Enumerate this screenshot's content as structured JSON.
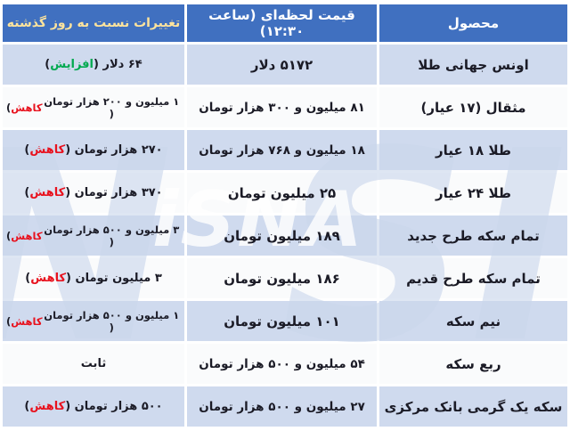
{
  "table": {
    "headers": [
      {
        "key": "product",
        "label": "محصول"
      },
      {
        "key": "price",
        "label": "قیمت لحظه‌ای (ساعت ۱۲:۳۰)"
      },
      {
        "key": "change",
        "label": "تغییرات نسبت به روز گذشته"
      }
    ],
    "rows": [
      {
        "product": "اونس جهانی طلا",
        "price": "۵۱۷۲ دلار",
        "change_text": "۶۴ دلار",
        "change_word": "افزایش",
        "change_dir": "increase"
      },
      {
        "product": "مثقال (۱۷ عیار)",
        "price": "۸۱ میلیون و ۳۰۰ هزار تومان",
        "change_text": "۱ میلیون و ۲۰۰ هزار تومان",
        "change_word": "کاهش",
        "change_dir": "decrease"
      },
      {
        "product": "طلا ۱۸ عیار",
        "price": "۱۸ میلیون و ۷۶۸ هزار تومان",
        "change_text": "۲۷۰ هزار تومان",
        "change_word": "کاهش",
        "change_dir": "decrease"
      },
      {
        "product": "طلا ۲۴ عیار",
        "price": "۲۵ میلیون تومان",
        "change_text": "۳۷۰ هزار تومان",
        "change_word": "کاهش",
        "change_dir": "decrease"
      },
      {
        "product": "تمام سکه طرح جدید",
        "price": "۱۸۹ میلیون تومان",
        "change_text": "۳ میلیون و ۵۰۰ هزار تومان",
        "change_word": "کاهش",
        "change_dir": "decrease"
      },
      {
        "product": "تمام سکه طرح قدیم",
        "price": "۱۸۶ میلیون تومان",
        "change_text": "۳ میلیون تومان",
        "change_word": "کاهش",
        "change_dir": "decrease"
      },
      {
        "product": "نیم سکه",
        "price": "۱۰۱ میلیون تومان",
        "change_text": "۱ میلیون و ۵۰۰ هزار تومان",
        "change_word": "کاهش",
        "change_dir": "decrease"
      },
      {
        "product": "ربع سکه",
        "price": "۵۴ میلیون و ۵۰۰ هزار تومان",
        "change_text": "ثابت",
        "change_word": "",
        "change_dir": "stable"
      },
      {
        "product": "سکه یک گرمی بانک مرکزی",
        "price": "۲۷ میلیون و ۵۰۰ هزار تومان",
        "change_text": "۵۰۰ هزار تومان",
        "change_word": "کاهش",
        "change_dir": "decrease"
      }
    ]
  },
  "watermark": {
    "big_letters": [
      "I",
      "S",
      "N",
      "A"
    ],
    "small": "iSNA"
  },
  "colors": {
    "header_bg": "#4070C0",
    "header_text": "#FFFFFF",
    "header_change_text": "#FFE49C",
    "row_blue": "#CFDAEE",
    "row_white": "#FAFBFC",
    "body_text": "#1B1B26",
    "increase": "#00A94F",
    "decrease": "#E8121E"
  },
  "chart_data": {
    "type": "table",
    "title": "",
    "columns": [
      "محصول",
      "قیمت لحظه‌ای (ساعت ۱۲:۳۰)",
      "تغییرات نسبت به روز گذشته"
    ],
    "rows": [
      [
        "اونس جهانی طلا",
        "۵۱۷۲ دلار",
        "۶۴ دلار (افزایش)"
      ],
      [
        "مثقال (۱۷ عیار)",
        "۸۱ میلیون و ۳۰۰ هزار تومان",
        "۱ میلیون و ۲۰۰ هزار تومان (کاهش)"
      ],
      [
        "طلا ۱۸ عیار",
        "۱۸ میلیون و ۷۶۸ هزار تومان",
        "۲۷۰ هزار تومان (کاهش)"
      ],
      [
        "طلا ۲۴ عیار",
        "۲۵ میلیون تومان",
        "۳۷۰ هزار تومان (کاهش)"
      ],
      [
        "تمام سکه طرح جدید",
        "۱۸۹ میلیون تومان",
        "۳ میلیون و ۵۰۰ هزار تومان (کاهش)"
      ],
      [
        "تمام سکه طرح قدیم",
        "۱۸۶ میلیون تومان",
        "۳ میلیون تومان (کاهش)"
      ],
      [
        "نیم سکه",
        "۱۰۱ میلیون تومان",
        "۱ میلیون و ۵۰۰ هزار تومان (کاهش)"
      ],
      [
        "ربع سکه",
        "۵۴ میلیون و ۵۰۰ هزار تومان",
        "ثابت"
      ],
      [
        "سکه یک گرمی بانک مرکزی",
        "۲۷ میلیون و ۵۰۰ هزار تومان",
        "۵۰۰ هزار تومان (کاهش)"
      ]
    ]
  }
}
